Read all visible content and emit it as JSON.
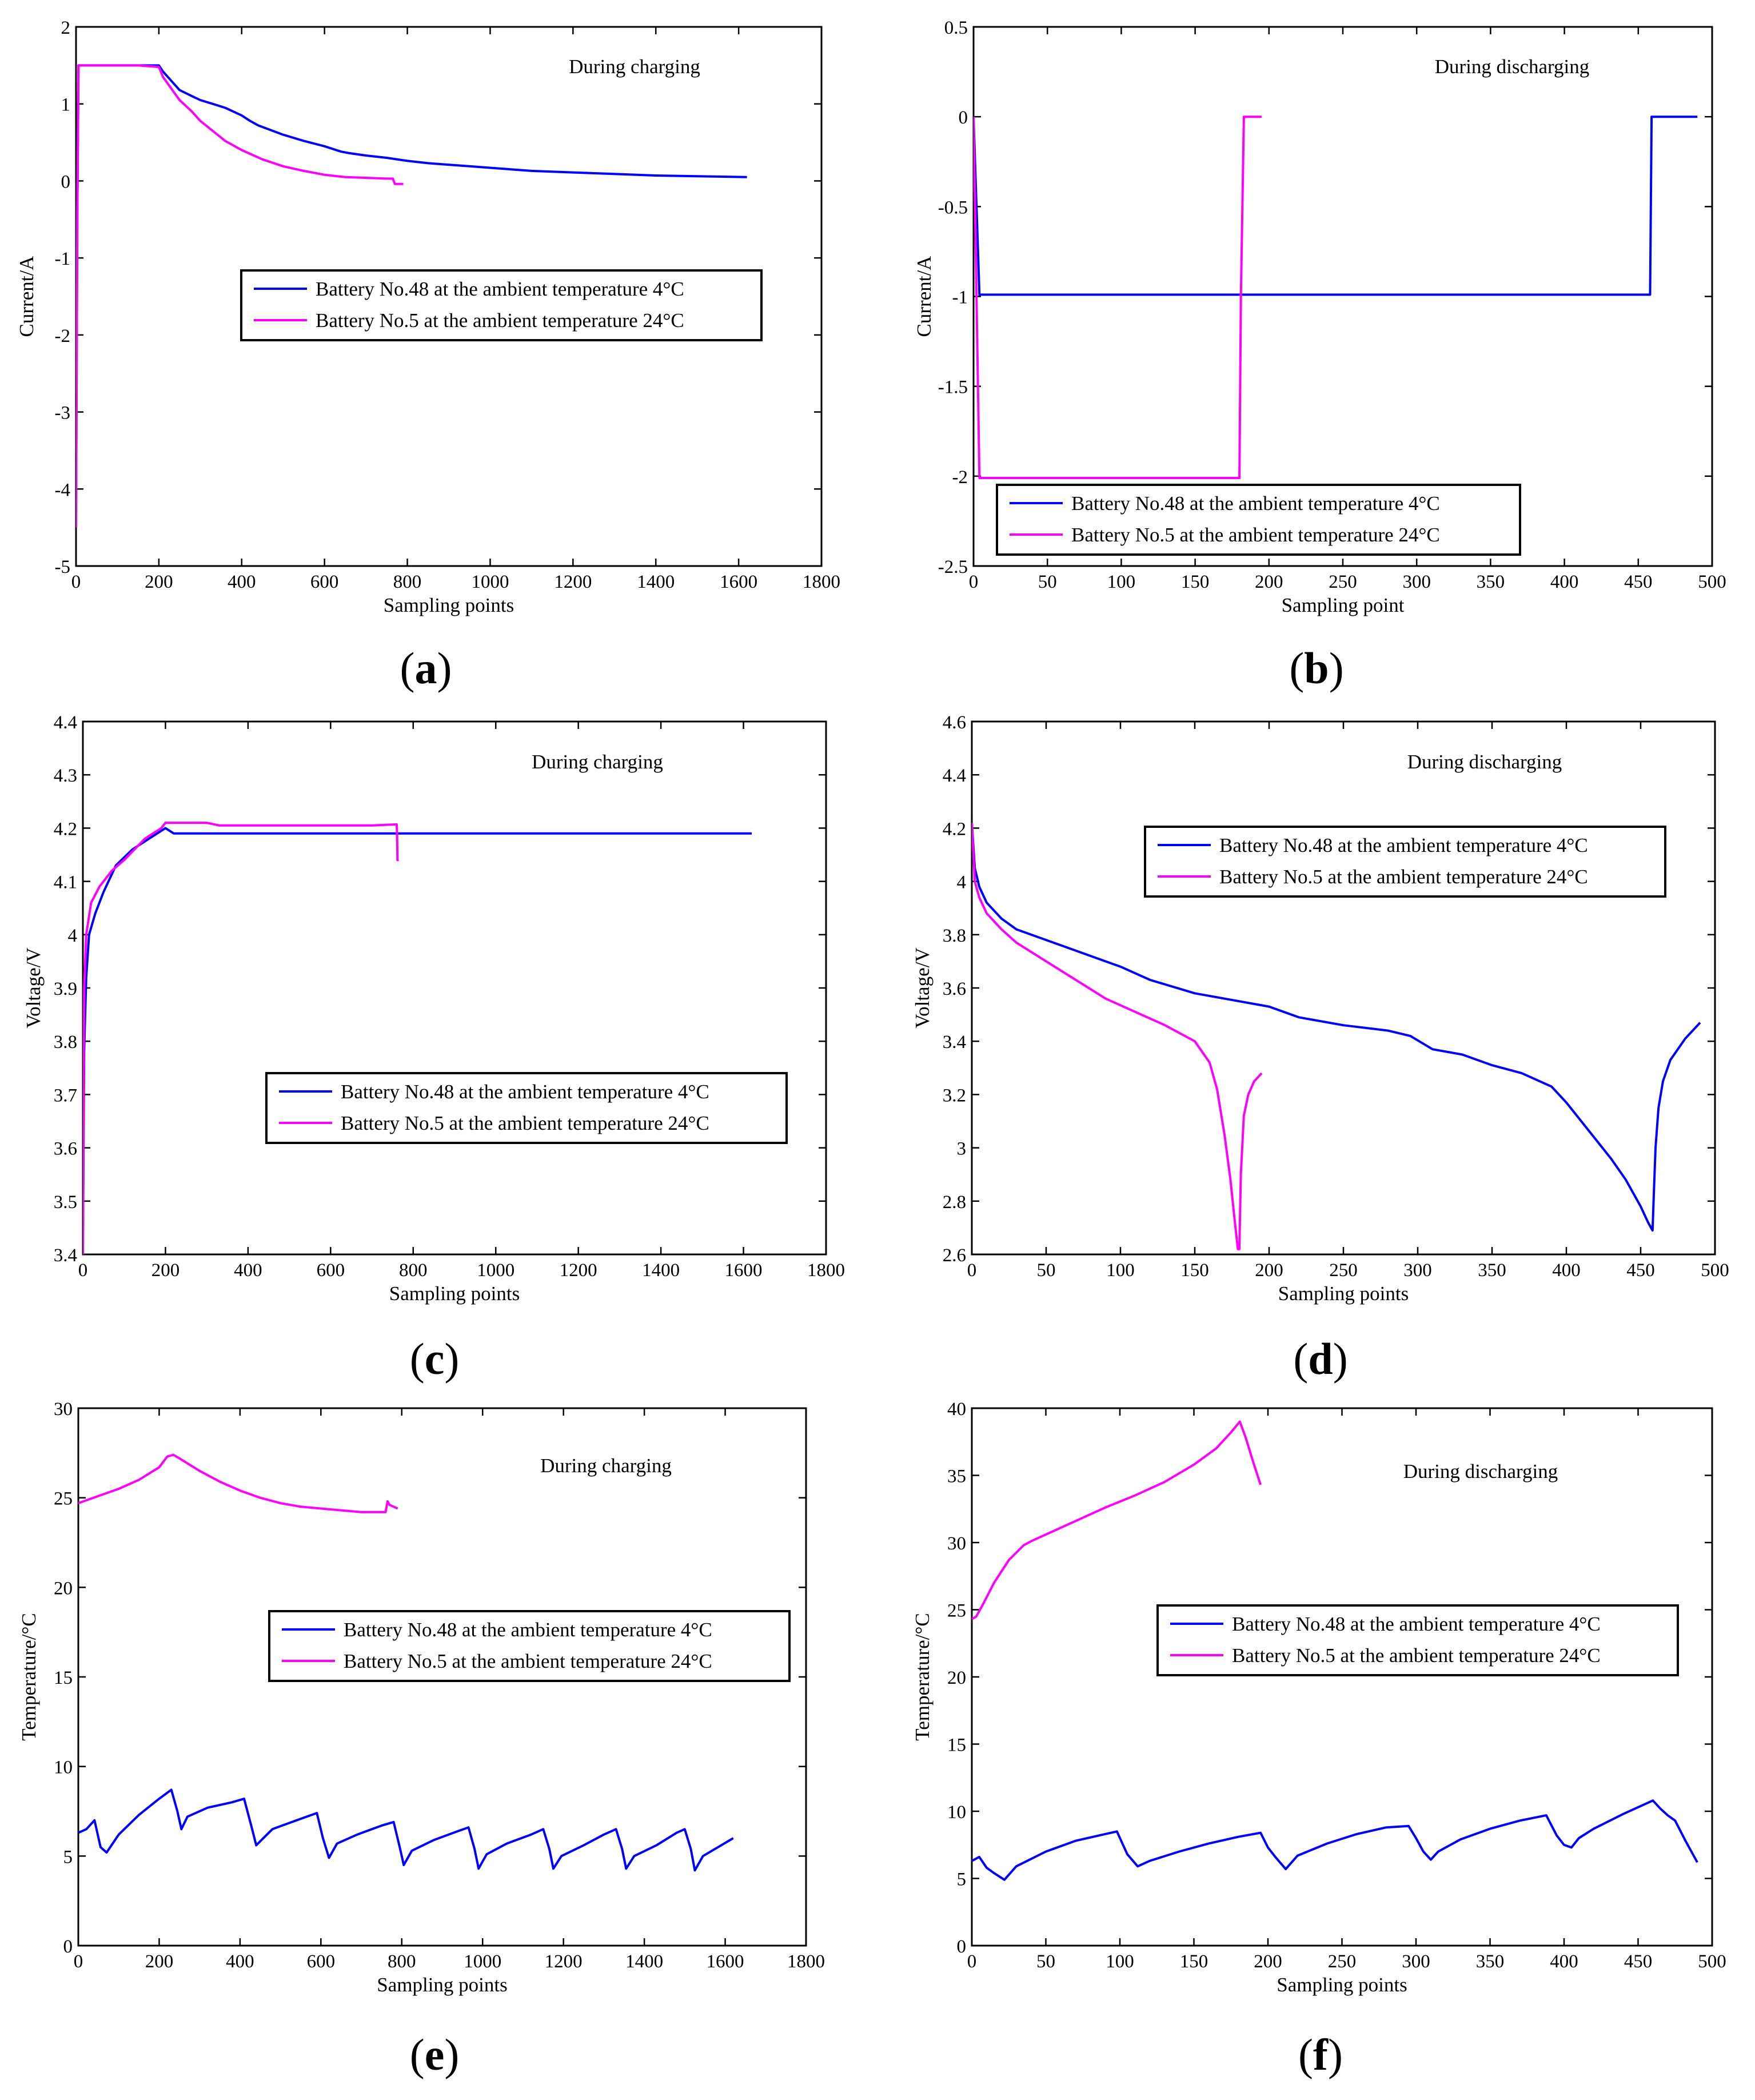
{
  "figure": {
    "legend_series": [
      {
        "key": "b48",
        "label": "Battery No.48 at the ambient temperature 4°C",
        "color": "#0000ff"
      },
      {
        "key": "b5",
        "label": "Battery No.5 at the ambient temperature 24°C",
        "color": "#ff00ff"
      }
    ]
  },
  "chart_data": [
    {
      "id": "a",
      "panel_label": "a",
      "type": "line",
      "annotation": "During charging",
      "xlabel": "Sampling points",
      "ylabel": "Current/A",
      "xlim": [
        0,
        1800
      ],
      "ylim": [
        -5,
        2
      ],
      "xticks": [
        0,
        200,
        400,
        600,
        800,
        1000,
        1200,
        1400,
        1600,
        1800
      ],
      "yticks": [
        -5,
        -4,
        -3,
        -2,
        -1,
        0,
        1,
        2
      ],
      "legend_position": "center",
      "series": [
        {
          "name": "Battery No.48 at the ambient temperature 4°C",
          "color": "#0000ff",
          "x": [
            0,
            3,
            6,
            10,
            60,
            150,
            200,
            210,
            230,
            250,
            280,
            300,
            330,
            360,
            380,
            400,
            420,
            440,
            460,
            500,
            550,
            600,
            640,
            660,
            700,
            750,
            800,
            850,
            900,
            950,
            1000,
            1050,
            1100,
            1200,
            1300,
            1400,
            1500,
            1620
          ],
          "y": [
            -4.5,
            -0.5,
            1.5,
            1.5,
            1.5,
            1.5,
            1.5,
            1.42,
            1.3,
            1.18,
            1.1,
            1.05,
            1.0,
            0.95,
            0.9,
            0.85,
            0.78,
            0.72,
            0.68,
            0.6,
            0.52,
            0.45,
            0.38,
            0.36,
            0.33,
            0.3,
            0.26,
            0.23,
            0.21,
            0.19,
            0.17,
            0.15,
            0.13,
            0.11,
            0.09,
            0.07,
            0.06,
            0.05
          ]
        },
        {
          "name": "Battery No.5 at the ambient temperature 24°C",
          "color": "#ff00ff",
          "x": [
            0,
            3,
            6,
            10,
            60,
            150,
            200,
            210,
            230,
            250,
            280,
            300,
            330,
            360,
            400,
            450,
            500,
            550,
            600,
            650,
            700,
            750,
            765,
            770,
            790
          ],
          "y": [
            -4.5,
            -0.5,
            1.5,
            1.5,
            1.5,
            1.5,
            1.48,
            1.35,
            1.2,
            1.05,
            0.9,
            0.78,
            0.65,
            0.52,
            0.4,
            0.28,
            0.19,
            0.13,
            0.08,
            0.05,
            0.04,
            0.03,
            0.03,
            -0.04,
            -0.04
          ]
        }
      ]
    },
    {
      "id": "b",
      "panel_label": "b",
      "type": "line",
      "annotation": "During discharging",
      "xlabel": "Sampling point",
      "ylabel": "Current/A",
      "xlim": [
        0,
        500
      ],
      "ylim": [
        -2.5,
        0.5
      ],
      "xticks": [
        0,
        50,
        100,
        150,
        200,
        250,
        300,
        350,
        400,
        450,
        500
      ],
      "yticks": [
        -2.5,
        -2,
        -1.5,
        -1,
        -0.5,
        0,
        0.5
      ],
      "legend_position": "bottom-center",
      "series": [
        {
          "name": "Battery No.48 at the ambient temperature 4°C",
          "color": "#0000ff",
          "x": [
            0,
            2,
            4,
            100,
            200,
            300,
            400,
            458,
            459,
            462,
            490
          ],
          "y": [
            0,
            -0.5,
            -0.99,
            -0.99,
            -0.99,
            -0.99,
            -0.99,
            -0.99,
            0,
            0,
            0
          ]
        },
        {
          "name": "Battery No.5 at the ambient temperature 24°C",
          "color": "#ff00ff",
          "x": [
            0,
            2,
            4,
            50,
            100,
            150,
            180,
            181,
            183,
            195
          ],
          "y": [
            0,
            -1.0,
            -2.01,
            -2.01,
            -2.01,
            -2.01,
            -2.01,
            -1.0,
            0,
            0
          ]
        }
      ]
    },
    {
      "id": "c",
      "panel_label": "c",
      "type": "line",
      "annotation": "During charging",
      "xlabel": "Sampling points",
      "ylabel": "Voltage/V",
      "xlim": [
        0,
        1800
      ],
      "ylim": [
        3.4,
        4.4
      ],
      "xticks": [
        0,
        200,
        400,
        600,
        800,
        1000,
        1200,
        1400,
        1600,
        1800
      ],
      "yticks": [
        3.4,
        3.5,
        3.6,
        3.7,
        3.8,
        3.9,
        4.0,
        4.1,
        4.2,
        4.3,
        4.4
      ],
      "legend_position": "bottom-center",
      "series": [
        {
          "name": "Battery No.48 at the ambient temperature 4°C",
          "color": "#0000ff",
          "x": [
            0,
            3,
            8,
            15,
            30,
            50,
            80,
            120,
            160,
            200,
            220,
            250,
            300,
            400,
            600,
            800,
            1000,
            1200,
            1400,
            1450,
            1620
          ],
          "y": [
            3.4,
            3.78,
            3.92,
            4.0,
            4.04,
            4.08,
            4.13,
            4.16,
            4.18,
            4.2,
            4.19,
            4.19,
            4.19,
            4.19,
            4.19,
            4.19,
            4.19,
            4.19,
            4.19,
            4.19,
            4.19
          ]
        },
        {
          "name": "Battery No.5 at the ambient temperature 24°C",
          "color": "#ff00ff",
          "x": [
            0,
            3,
            8,
            20,
            40,
            70,
            100,
            150,
            190,
            200,
            250,
            300,
            330,
            400,
            600,
            700,
            760,
            761,
            762,
            765
          ],
          "y": [
            3.4,
            3.9,
            4.0,
            4.06,
            4.09,
            4.12,
            4.14,
            4.18,
            4.2,
            4.21,
            4.21,
            4.21,
            4.205,
            4.205,
            4.205,
            4.205,
            4.207,
            4.19,
            4.14,
            4.14
          ]
        }
      ]
    },
    {
      "id": "d",
      "panel_label": "d",
      "type": "line",
      "annotation": "During discharging",
      "xlabel": "Sampling points",
      "ylabel": "Voltage/V",
      "xlim": [
        0,
        500
      ],
      "ylim": [
        2.6,
        4.6
      ],
      "xticks": [
        0,
        50,
        100,
        150,
        200,
        250,
        300,
        350,
        400,
        450,
        500
      ],
      "yticks": [
        2.6,
        2.8,
        3.0,
        3.2,
        3.4,
        3.6,
        3.8,
        4.0,
        4.2,
        4.4,
        4.6
      ],
      "legend_position": "top-center",
      "series": [
        {
          "name": "Battery No.48 at the ambient temperature 4°C",
          "color": "#0000ff",
          "x": [
            0,
            2,
            5,
            10,
            20,
            30,
            50,
            80,
            100,
            120,
            150,
            180,
            200,
            220,
            250,
            280,
            295,
            310,
            330,
            350,
            370,
            390,
            400,
            410,
            420,
            430,
            440,
            450,
            455,
            458,
            459,
            460,
            462,
            465,
            470,
            480,
            490
          ],
          "y": [
            4.22,
            4.05,
            3.98,
            3.92,
            3.86,
            3.82,
            3.78,
            3.72,
            3.68,
            3.63,
            3.58,
            3.55,
            3.53,
            3.49,
            3.46,
            3.44,
            3.42,
            3.37,
            3.35,
            3.31,
            3.28,
            3.23,
            3.17,
            3.1,
            3.03,
            2.96,
            2.88,
            2.78,
            2.72,
            2.69,
            2.85,
            3.0,
            3.15,
            3.25,
            3.33,
            3.41,
            3.47
          ]
        },
        {
          "name": "Battery No.5 at the ambient temperature 24°C",
          "color": "#ff00ff",
          "x": [
            0,
            2,
            5,
            10,
            20,
            30,
            50,
            70,
            90,
            110,
            130,
            150,
            160,
            165,
            170,
            174,
            177,
            179,
            180,
            181,
            183,
            186,
            190,
            195
          ],
          "y": [
            4.22,
            4.0,
            3.94,
            3.88,
            3.82,
            3.77,
            3.7,
            3.63,
            3.56,
            3.51,
            3.46,
            3.4,
            3.32,
            3.22,
            3.05,
            2.88,
            2.72,
            2.62,
            2.62,
            2.9,
            3.12,
            3.2,
            3.25,
            3.28
          ]
        }
      ]
    },
    {
      "id": "e",
      "panel_label": "e",
      "type": "line",
      "annotation": "During charging",
      "xlabel": "Sampling points",
      "ylabel": "Temperature/°C",
      "xlim": [
        0,
        1800
      ],
      "ylim": [
        0,
        30
      ],
      "xticks": [
        0,
        200,
        400,
        600,
        800,
        1000,
        1200,
        1400,
        1600,
        1800
      ],
      "yticks": [
        0,
        5,
        10,
        15,
        20,
        25,
        30
      ],
      "legend_position": "center",
      "series": [
        {
          "name": "Battery No.48 at the ambient temperature 4°C",
          "color": "#0000ff",
          "x": [
            0,
            20,
            40,
            55,
            70,
            100,
            150,
            200,
            230,
            245,
            255,
            270,
            320,
            380,
            410,
            430,
            440,
            480,
            540,
            590,
            605,
            620,
            640,
            690,
            750,
            780,
            795,
            805,
            825,
            880,
            940,
            965,
            980,
            990,
            1010,
            1060,
            1120,
            1150,
            1165,
            1175,
            1195,
            1250,
            1300,
            1330,
            1345,
            1355,
            1375,
            1430,
            1480,
            1500,
            1515,
            1525,
            1545,
            1620
          ],
          "y": [
            6.3,
            6.5,
            7.0,
            5.5,
            5.2,
            6.2,
            7.3,
            8.2,
            8.7,
            7.5,
            6.5,
            7.2,
            7.7,
            8.0,
            8.2,
            6.5,
            5.6,
            6.5,
            7.0,
            7.4,
            6.0,
            4.9,
            5.7,
            6.2,
            6.7,
            6.9,
            5.5,
            4.5,
            5.3,
            5.9,
            6.4,
            6.6,
            5.4,
            4.3,
            5.1,
            5.7,
            6.2,
            6.5,
            5.4,
            4.3,
            5.0,
            5.6,
            6.2,
            6.5,
            5.4,
            4.3,
            5.0,
            5.6,
            6.3,
            6.5,
            5.4,
            4.2,
            5.0,
            6.0
          ]
        },
        {
          "name": "Battery No.5 at the ambient temperature 24°C",
          "color": "#ff00ff",
          "x": [
            0,
            50,
            100,
            150,
            200,
            220,
            235,
            250,
            300,
            350,
            400,
            450,
            500,
            550,
            600,
            650,
            700,
            760,
            765,
            770,
            790
          ],
          "y": [
            24.7,
            25.1,
            25.5,
            26.0,
            26.7,
            27.3,
            27.4,
            27.2,
            26.5,
            25.9,
            25.4,
            25.0,
            24.7,
            24.5,
            24.4,
            24.3,
            24.2,
            24.2,
            24.8,
            24.6,
            24.4
          ]
        }
      ]
    },
    {
      "id": "f",
      "panel_label": "f",
      "type": "line",
      "annotation": "During discharging",
      "xlabel": "Sampling points",
      "ylabel": "Temperature/°C",
      "xlim": [
        0,
        500
      ],
      "ylim": [
        0,
        40
      ],
      "xticks": [
        0,
        50,
        100,
        150,
        200,
        250,
        300,
        350,
        400,
        450,
        500
      ],
      "yticks": [
        0,
        5,
        10,
        15,
        20,
        25,
        30,
        35,
        40
      ],
      "legend_position": "center",
      "series": [
        {
          "name": "Battery No.48 at the ambient temperature 4°C",
          "color": "#0000ff",
          "x": [
            0,
            5,
            10,
            15,
            22,
            30,
            50,
            70,
            90,
            98,
            105,
            112,
            120,
            140,
            160,
            180,
            195,
            200,
            205,
            212,
            220,
            240,
            260,
            280,
            295,
            300,
            305,
            310,
            315,
            330,
            350,
            370,
            388,
            395,
            400,
            405,
            410,
            420,
            440,
            460,
            465,
            470,
            475,
            482,
            490
          ],
          "y": [
            6.3,
            6.6,
            5.8,
            5.4,
            4.9,
            5.9,
            7.0,
            7.8,
            8.3,
            8.5,
            6.8,
            5.9,
            6.3,
            7.0,
            7.6,
            8.1,
            8.4,
            7.3,
            6.6,
            5.7,
            6.7,
            7.6,
            8.3,
            8.8,
            8.9,
            8.0,
            7.0,
            6.4,
            7.0,
            7.9,
            8.7,
            9.3,
            9.7,
            8.2,
            7.5,
            7.3,
            8.0,
            8.7,
            9.8,
            10.8,
            10.2,
            9.7,
            9.3,
            7.8,
            6.2
          ]
        },
        {
          "name": "Battery No.5 at the ambient temperature 24°C",
          "color": "#ff00ff",
          "x": [
            0,
            3,
            8,
            15,
            25,
            35,
            40,
            50,
            70,
            90,
            110,
            130,
            150,
            165,
            175,
            181,
            185,
            190,
            195
          ],
          "y": [
            24.3,
            24.5,
            25.5,
            27.0,
            28.7,
            29.8,
            30.1,
            30.6,
            31.6,
            32.6,
            33.5,
            34.5,
            35.8,
            37.0,
            38.2,
            39.0,
            37.8,
            36.0,
            34.3
          ]
        }
      ]
    }
  ]
}
